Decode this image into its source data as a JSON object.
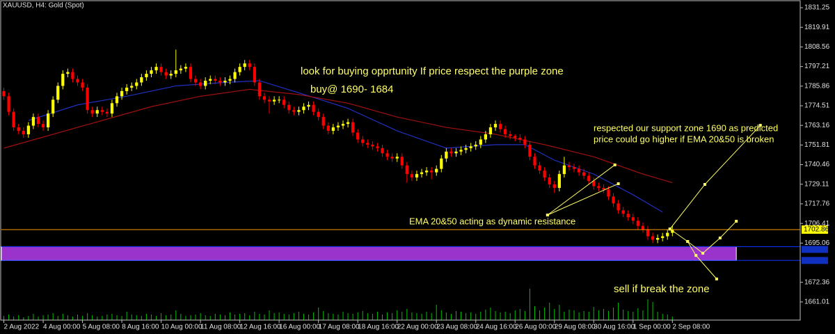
{
  "chart_data": {
    "type": "candlestick",
    "title": "XAUUSD, H4:  Gold (Spot)",
    "up_color": "#ffff00",
    "down_color": "#ff0000",
    "volume_color": "#00c000",
    "xlim": [
      -0.5,
      162
    ],
    "ylim": [
      1650.5,
      1835.7
    ],
    "xticks": [
      {
        "value": 0,
        "label": "2 Aug 2022"
      },
      {
        "value": 8,
        "label": "4 Aug 00:00"
      },
      {
        "value": 16,
        "label": "5 Aug 08:00"
      },
      {
        "value": 24,
        "label": "8 Aug 16:00"
      },
      {
        "value": 32,
        "label": "10 Aug 00:00"
      },
      {
        "value": 40,
        "label": "11 Aug 08:00"
      },
      {
        "value": 48,
        "label": "12 Aug 16:00"
      },
      {
        "value": 56,
        "label": "16 Aug 00:00"
      },
      {
        "value": 64,
        "label": "17 Aug 08:00"
      },
      {
        "value": 72,
        "label": "18 Aug 16:00"
      },
      {
        "value": 80,
        "label": "22 Aug 00:00"
      },
      {
        "value": 88,
        "label": "23 Aug 08:00"
      },
      {
        "value": 96,
        "label": "24 Aug 16:00"
      },
      {
        "value": 104,
        "label": "26 Aug 00:00"
      },
      {
        "value": 112,
        "label": "29 Aug 08:00"
      },
      {
        "value": 120,
        "label": "30 Aug 16:00"
      },
      {
        "value": 128,
        "label": "1 Sep 00:00"
      },
      {
        "value": 136,
        "label": "2 Sep 08:00"
      }
    ],
    "yticks": [
      1831.25,
      1819.91,
      1808.56,
      1797.21,
      1785.86,
      1774.51,
      1763.16,
      1751.81,
      1740.46,
      1729.11,
      1717.76,
      1706.41,
      1695.06,
      1672.36,
      1661.01
    ],
    "ohlc": [
      [
        1783,
        1785,
        1778,
        1780
      ],
      [
        1780,
        1782,
        1769,
        1771
      ],
      [
        1771,
        1773,
        1760,
        1762
      ],
      [
        1762,
        1764,
        1758,
        1760
      ],
      [
        1760,
        1762,
        1756,
        1758
      ],
      [
        1758,
        1765,
        1756,
        1763
      ],
      [
        1763,
        1770,
        1761,
        1768
      ],
      [
        1768,
        1770,
        1762,
        1764
      ],
      [
        1764,
        1766,
        1760,
        1762
      ],
      [
        1762,
        1772,
        1760,
        1770
      ],
      [
        1770,
        1780,
        1768,
        1778
      ],
      [
        1778,
        1788,
        1776,
        1786
      ],
      [
        1786,
        1795,
        1784,
        1793
      ],
      [
        1793,
        1796,
        1791,
        1794
      ],
      [
        1794,
        1796,
        1788,
        1790
      ],
      [
        1790,
        1792,
        1786,
        1788
      ],
      [
        1788,
        1790,
        1783,
        1785
      ],
      [
        1785,
        1787,
        1770,
        1772
      ],
      [
        1772,
        1774,
        1768,
        1770
      ],
      [
        1770,
        1774,
        1768,
        1772
      ],
      [
        1772,
        1774,
        1769,
        1771
      ],
      [
        1771,
        1773,
        1768,
        1770
      ],
      [
        1770,
        1778,
        1768,
        1776
      ],
      [
        1776,
        1782,
        1774,
        1780
      ],
      [
        1780,
        1785,
        1778,
        1783
      ],
      [
        1783,
        1787,
        1781,
        1785
      ],
      [
        1785,
        1788,
        1783,
        1786
      ],
      [
        1786,
        1790,
        1784,
        1788
      ],
      [
        1788,
        1793,
        1786,
        1791
      ],
      [
        1791,
        1795,
        1789,
        1793
      ],
      [
        1793,
        1797,
        1791,
        1795
      ],
      [
        1795,
        1799,
        1793,
        1797
      ],
      [
        1797,
        1799,
        1792,
        1794
      ],
      [
        1794,
        1796,
        1790,
        1792
      ],
      [
        1792,
        1795,
        1790,
        1793
      ],
      [
        1793,
        1807,
        1791,
        1795
      ],
      [
        1795,
        1798,
        1793,
        1796
      ],
      [
        1796,
        1799,
        1794,
        1797
      ],
      [
        1797,
        1799,
        1788,
        1790
      ],
      [
        1790,
        1792,
        1786,
        1788
      ],
      [
        1788,
        1790,
        1784,
        1786
      ],
      [
        1786,
        1791,
        1784,
        1789
      ],
      [
        1789,
        1792,
        1787,
        1790
      ],
      [
        1790,
        1792,
        1787,
        1789
      ],
      [
        1789,
        1791,
        1786,
        1788
      ],
      [
        1788,
        1791,
        1786,
        1789
      ],
      [
        1789,
        1792,
        1787,
        1790
      ],
      [
        1790,
        1796,
        1788,
        1794
      ],
      [
        1794,
        1799,
        1792,
        1797
      ],
      [
        1797,
        1801,
        1795,
        1799
      ],
      [
        1799,
        1801,
        1795,
        1797
      ],
      [
        1797,
        1799,
        1786,
        1788
      ],
      [
        1788,
        1790,
        1778,
        1780
      ],
      [
        1780,
        1782,
        1776,
        1778
      ],
      [
        1778,
        1780,
        1770,
        1777
      ],
      [
        1777,
        1780,
        1775,
        1778
      ],
      [
        1778,
        1780,
        1776,
        1778
      ],
      [
        1778,
        1780,
        1773,
        1775
      ],
      [
        1775,
        1777,
        1770,
        1772
      ],
      [
        1772,
        1774,
        1769,
        1771
      ],
      [
        1771,
        1774,
        1769,
        1772
      ],
      [
        1772,
        1776,
        1770,
        1774
      ],
      [
        1774,
        1777,
        1772,
        1775
      ],
      [
        1775,
        1777,
        1769,
        1771
      ],
      [
        1771,
        1773,
        1766,
        1768
      ],
      [
        1768,
        1770,
        1761,
        1763
      ],
      [
        1763,
        1765,
        1758,
        1760
      ],
      [
        1760,
        1764,
        1758,
        1762
      ],
      [
        1762,
        1765,
        1760,
        1763
      ],
      [
        1763,
        1766,
        1761,
        1764
      ],
      [
        1764,
        1767,
        1762,
        1765
      ],
      [
        1765,
        1767,
        1757,
        1759
      ],
      [
        1759,
        1761,
        1753,
        1755
      ],
      [
        1755,
        1757,
        1751,
        1753
      ],
      [
        1753,
        1755,
        1750,
        1752
      ],
      [
        1752,
        1754,
        1749,
        1751
      ],
      [
        1751,
        1753,
        1748,
        1750
      ],
      [
        1750,
        1752,
        1745,
        1747
      ],
      [
        1747,
        1749,
        1743,
        1745
      ],
      [
        1745,
        1747,
        1742,
        1744
      ],
      [
        1744,
        1747,
        1742,
        1745
      ],
      [
        1745,
        1747,
        1738,
        1740
      ],
      [
        1740,
        1742,
        1730,
        1735
      ],
      [
        1735,
        1737,
        1731,
        1733
      ],
      [
        1733,
        1737,
        1731,
        1735
      ],
      [
        1735,
        1738,
        1733,
        1736
      ],
      [
        1736,
        1739,
        1734,
        1737
      ],
      [
        1737,
        1739,
        1732,
        1736
      ],
      [
        1736,
        1740,
        1734,
        1738
      ],
      [
        1738,
        1746,
        1736,
        1744
      ],
      [
        1744,
        1750,
        1742,
        1748
      ],
      [
        1748,
        1750,
        1745,
        1747
      ],
      [
        1747,
        1750,
        1745,
        1748
      ],
      [
        1748,
        1751,
        1746,
        1749
      ],
      [
        1749,
        1752,
        1747,
        1750
      ],
      [
        1750,
        1753,
        1748,
        1751
      ],
      [
        1751,
        1754,
        1749,
        1752
      ],
      [
        1752,
        1757,
        1750,
        1755
      ],
      [
        1755,
        1760,
        1753,
        1758
      ],
      [
        1758,
        1764,
        1756,
        1762
      ],
      [
        1762,
        1766,
        1760,
        1764
      ],
      [
        1764,
        1766,
        1759,
        1761
      ],
      [
        1761,
        1763,
        1756,
        1758
      ],
      [
        1758,
        1760,
        1755,
        1757
      ],
      [
        1757,
        1758,
        1754,
        1756
      ],
      [
        1756,
        1758,
        1753,
        1755
      ],
      [
        1755,
        1757,
        1750,
        1752
      ],
      [
        1752,
        1754,
        1743,
        1745
      ],
      [
        1745,
        1747,
        1738,
        1740
      ],
      [
        1740,
        1742,
        1735,
        1737
      ],
      [
        1737,
        1739,
        1731,
        1733
      ],
      [
        1733,
        1735,
        1727,
        1729
      ],
      [
        1729,
        1731,
        1724,
        1727
      ],
      [
        1727,
        1737,
        1725,
        1735
      ],
      [
        1735,
        1745,
        1733,
        1740
      ],
      [
        1740,
        1742,
        1737,
        1739
      ],
      [
        1739,
        1741,
        1736,
        1738
      ],
      [
        1738,
        1740,
        1734,
        1736
      ],
      [
        1736,
        1738,
        1732,
        1734
      ],
      [
        1734,
        1736,
        1729,
        1731
      ],
      [
        1731,
        1733,
        1726,
        1728
      ],
      [
        1728,
        1730,
        1725,
        1727
      ],
      [
        1727,
        1729,
        1724,
        1726
      ],
      [
        1726,
        1728,
        1720,
        1722
      ],
      [
        1722,
        1724,
        1716,
        1718
      ],
      [
        1718,
        1720,
        1712,
        1714
      ],
      [
        1714,
        1716,
        1710,
        1712
      ],
      [
        1712,
        1714,
        1708,
        1710
      ],
      [
        1710,
        1712,
        1706,
        1708
      ],
      [
        1708,
        1710,
        1703,
        1705
      ],
      [
        1705,
        1707,
        1701,
        1703
      ],
      [
        1703,
        1705,
        1697,
        1699
      ],
      [
        1699,
        1701,
        1695,
        1697
      ],
      [
        1697,
        1700,
        1695,
        1698
      ],
      [
        1698,
        1701,
        1696,
        1699
      ],
      [
        1699,
        1703,
        1697,
        1701
      ],
      [
        1701,
        1705,
        1699,
        1703
      ]
    ],
    "volumes": [
      6,
      8,
      5,
      7,
      4,
      6,
      9,
      5,
      7,
      8,
      10,
      6,
      9,
      7,
      5,
      8,
      6,
      10,
      7,
      5,
      6,
      8,
      9,
      7,
      6,
      12,
      8,
      7,
      6,
      9,
      8,
      6,
      10,
      7,
      8,
      14,
      9,
      6,
      7,
      8,
      10,
      7,
      6,
      9,
      8,
      7,
      11,
      8,
      9,
      10,
      7,
      12,
      9,
      8,
      14,
      10,
      11,
      9,
      8,
      10,
      12,
      9,
      8,
      11,
      18,
      13,
      10,
      9,
      8,
      12,
      10,
      9,
      11,
      13,
      10,
      9,
      12,
      8,
      11,
      10,
      14,
      12,
      16,
      11,
      10,
      9,
      12,
      10,
      22,
      14,
      11,
      9,
      13,
      12,
      10,
      11,
      9,
      12,
      15,
      18,
      13,
      11,
      12,
      10,
      14,
      16,
      13,
      45,
      20,
      14,
      18,
      25,
      16,
      22,
      12,
      15,
      14,
      11,
      13,
      12,
      19,
      14,
      16,
      13,
      18,
      25,
      15,
      13,
      12,
      17,
      14,
      30,
      26,
      12,
      9,
      8,
      5
    ],
    "series": [
      {
        "color": "#2030c0",
        "x": [
          5,
          15,
          25,
          35,
          45,
          52,
          60,
          70,
          80,
          90,
          100,
          106,
          112,
          120,
          128,
          134
        ],
        "values": [
          1766,
          1775,
          1780,
          1786,
          1788,
          1789,
          1782,
          1773,
          1760,
          1750,
          1752,
          1752,
          1743,
          1735,
          1723,
          1713
        ]
      },
      {
        "color": "#a01010",
        "x": [
          0,
          10,
          20,
          30,
          40,
          50,
          60,
          70,
          80,
          90,
          100,
          110,
          120,
          130,
          136
        ],
        "values": [
          1750,
          1758,
          1766,
          1774,
          1780,
          1784,
          1781,
          1776,
          1768,
          1762,
          1758,
          1752,
          1745,
          1735,
          1730
        ]
      }
    ],
    "current_price": 1702.86,
    "current_price_color": "#ff9900",
    "zone": {
      "from": 1693,
      "to": 1685,
      "end_x": 149,
      "color": "#9933cc",
      "edge_color": "#1030ff"
    },
    "drawings_color": "#ffff66",
    "drawings": [
      {
        "x": [
          110.6,
          124.3
        ],
        "values": [
          1711.3,
          1740.3
        ]
      },
      {
        "x": [
          110.6,
          125.0
        ],
        "values": [
          1711.3,
          1729.4
        ]
      },
      {
        "x": [
          135.5,
          142.6,
          153.9
        ],
        "values": [
          1703.2,
          1729.0,
          1763.2
        ]
      },
      {
        "x": [
          135.5,
          139.1,
          142.2,
          145.7,
          149.0
        ],
        "values": [
          1703.2,
          1696.0,
          1689.2,
          1698.0,
          1707.7
        ]
      },
      {
        "x": [
          139.1,
          140.8,
          145.0
        ],
        "values": [
          1696.0,
          1687.9,
          1674.3
        ]
      }
    ],
    "annotations": [
      "look for buying opprtunity If price respect the purple zone",
      "buy@ 1690- 1684",
      "respected our support  zone 1690 as predicted",
      "price could go higher if EMA 20&50 is broken",
      "EMA 20&50 acting as dynamic resistance",
      "sell if break the zone"
    ]
  }
}
